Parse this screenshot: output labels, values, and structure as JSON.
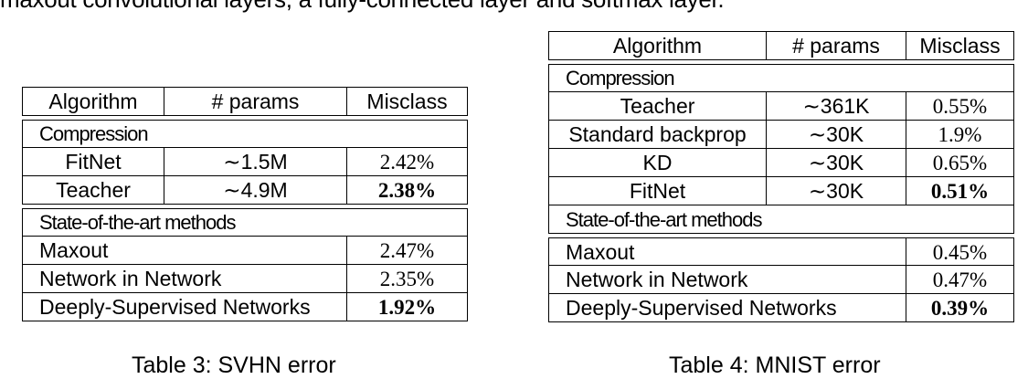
{
  "top_text": "maxout convolutional layers, a fully-connected layer and softmax layer.",
  "table3": {
    "headers": [
      "Algorithm",
      "# params",
      "Misclass"
    ],
    "section_compression": "Compression",
    "compression_rows": [
      {
        "algorithm": "FitNet",
        "params": "∼1.5M",
        "misclass": "2.42%"
      },
      {
        "algorithm": "Teacher",
        "params": "∼4.9M",
        "misclass": "2.38%"
      }
    ],
    "section_sota": "State-of-the-art methods",
    "sota_rows": [
      {
        "algorithm": "Maxout",
        "misclass": "2.47%"
      },
      {
        "algorithm": "Network in Network",
        "misclass": "2.35%"
      },
      {
        "algorithm": "Deeply-Supervised Networks",
        "misclass": "1.92%"
      }
    ],
    "caption": "Table 3: SVHN error"
  },
  "table4": {
    "headers": [
      "Algorithm",
      "# params",
      "Misclass"
    ],
    "section_compression": "Compression",
    "compression_rows": [
      {
        "algorithm": "Teacher",
        "params": "∼361K",
        "misclass": "0.55%"
      },
      {
        "algorithm": "Standard backprop",
        "params": "∼30K",
        "misclass": "1.9%"
      },
      {
        "algorithm": "KD",
        "params": "∼30K",
        "misclass": "0.65%"
      },
      {
        "algorithm": "FitNet",
        "params": "∼30K",
        "misclass": "0.51%"
      }
    ],
    "section_sota": "State-of-the-art methods",
    "sota_rows": [
      {
        "algorithm": "Maxout",
        "misclass": "0.45%"
      },
      {
        "algorithm": "Network in Network",
        "misclass": "0.47%"
      },
      {
        "algorithm": "Deeply-Supervised Networks",
        "misclass": "0.39%"
      }
    ],
    "caption": "Table 4: MNIST error"
  }
}
